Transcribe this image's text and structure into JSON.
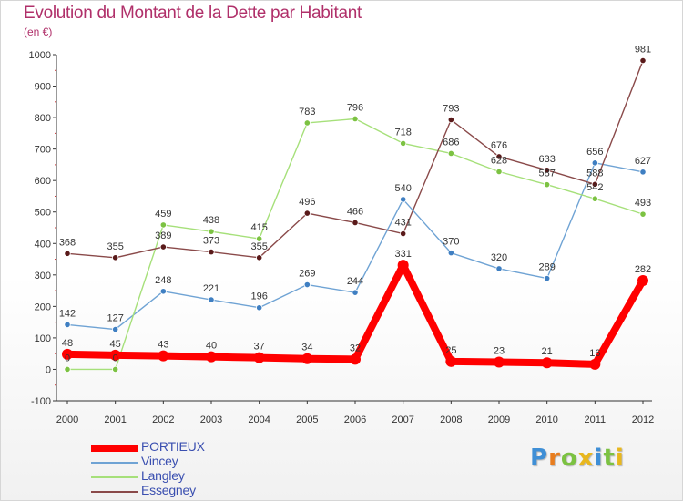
{
  "title": "Evolution du Montant de la Dette par Habitant",
  "subtitle": "(en €)",
  "logo": {
    "text": "Proxiti",
    "letters": [
      {
        "ch": "P",
        "color": "#3f8fd6"
      },
      {
        "ch": "r",
        "color": "#e87d1e"
      },
      {
        "ch": "o",
        "color": "#7cc242"
      },
      {
        "ch": "x",
        "color": "#e8b71e"
      },
      {
        "ch": "i",
        "color": "#3f8fd6"
      },
      {
        "ch": "t",
        "color": "#7cc242"
      },
      {
        "ch": "i",
        "color": "#e8b71e"
      }
    ]
  },
  "chart_data": {
    "type": "line",
    "x": [
      "2000",
      "2001",
      "2002",
      "2003",
      "2004",
      "2005",
      "2006",
      "2007",
      "2008",
      "2009",
      "2010",
      "2011",
      "2012"
    ],
    "ylim": [
      -100,
      1000
    ],
    "yticks": [
      -100,
      0,
      100,
      200,
      300,
      400,
      500,
      600,
      700,
      800,
      900,
      1000
    ],
    "grid": false,
    "legend_position": "bottom-left",
    "series": [
      {
        "name": "PORTIEUX",
        "color": "#ff0000",
        "marker": "#ff0000",
        "emphasis": true,
        "values": [
          48,
          45,
          43,
          40,
          37,
          34,
          32,
          331,
          25,
          23,
          21,
          16,
          282
        ]
      },
      {
        "name": "Vincey",
        "color": "#6fa3d4",
        "marker": "#3f7fc2",
        "emphasis": false,
        "values": [
          142,
          127,
          248,
          221,
          196,
          269,
          244,
          540,
          370,
          320,
          289,
          656,
          627
        ]
      },
      {
        "name": "Langley",
        "color": "#a6e07a",
        "marker": "#7cc242",
        "emphasis": false,
        "values": [
          0,
          0,
          459,
          438,
          415,
          783,
          796,
          718,
          686,
          628,
          587,
          542,
          493
        ]
      },
      {
        "name": "Essegney",
        "color": "#8a4a4a",
        "marker": "#5a1a1a",
        "emphasis": false,
        "values": [
          368,
          355,
          389,
          373,
          355,
          496,
          466,
          431,
          793,
          676,
          633,
          588,
          981
        ]
      }
    ]
  }
}
